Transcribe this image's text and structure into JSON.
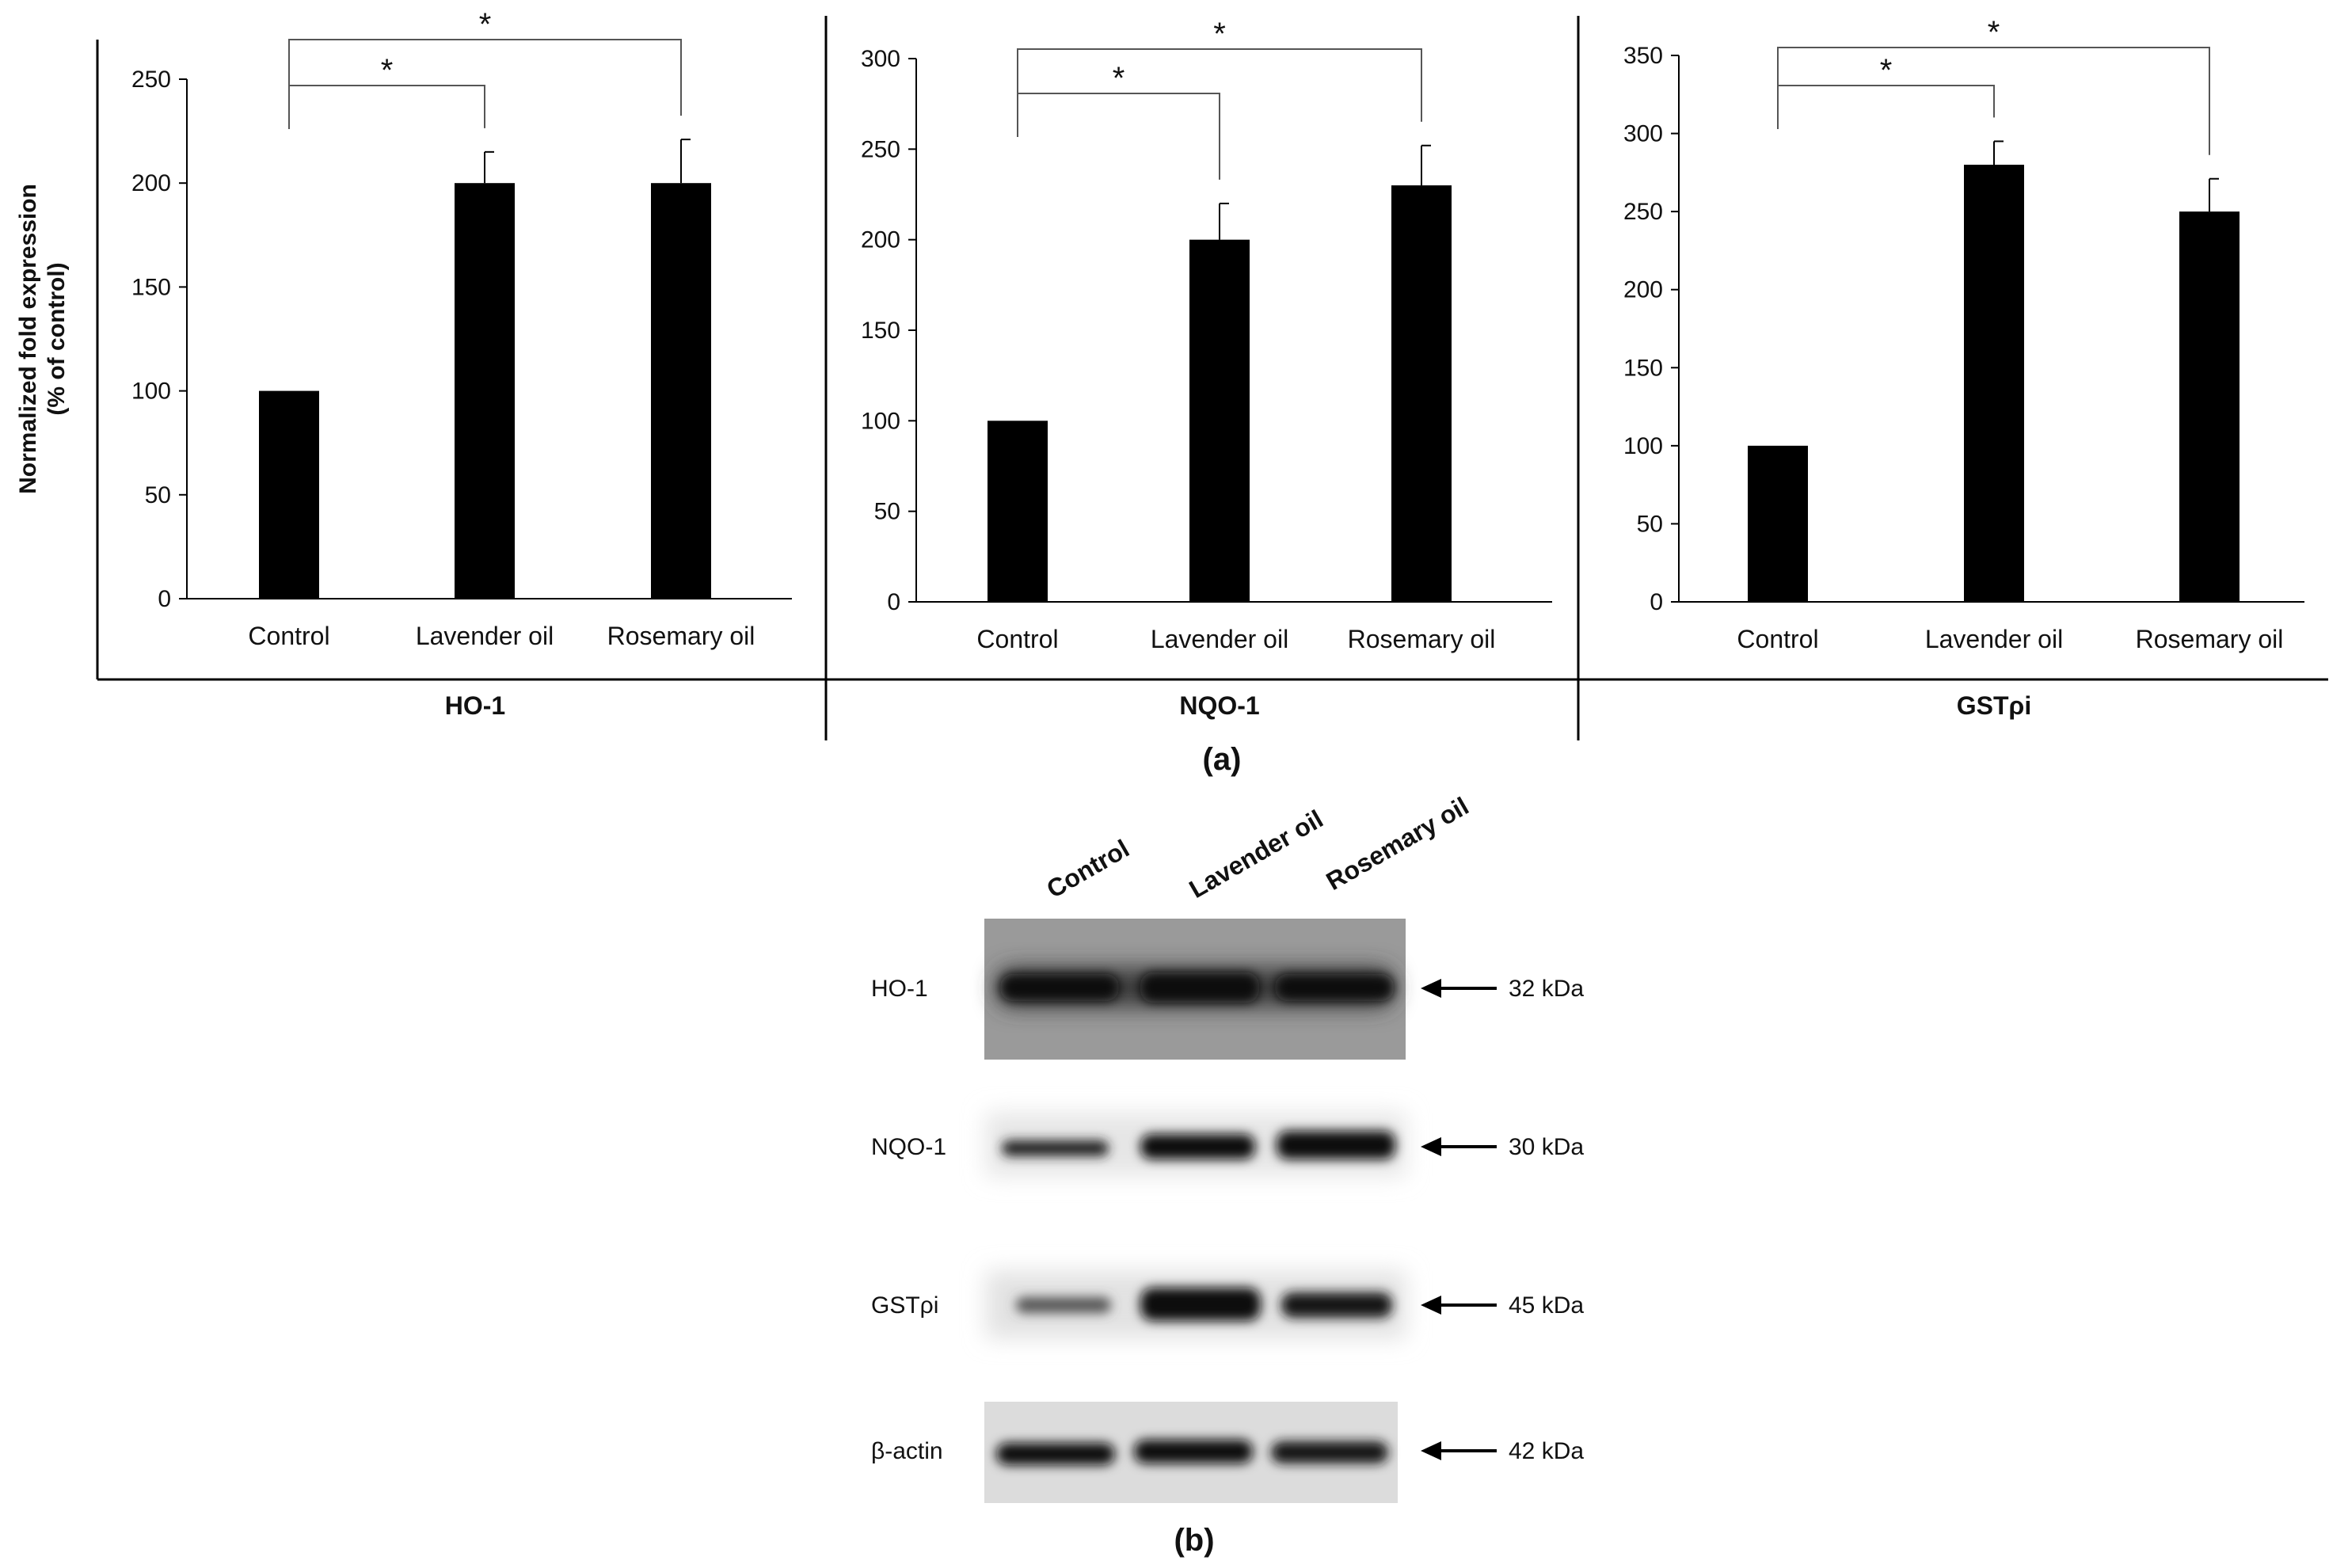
{
  "chart_data": [
    {
      "type": "bar",
      "panel_label": "HO-1",
      "categories": [
        "Control",
        "Lavender oil",
        "Rosemary oil"
      ],
      "values": [
        100,
        200,
        200
      ],
      "errors": [
        0,
        15,
        21
      ],
      "ylabel": "Normalized fold expression",
      "ylabel2": "(% of control)",
      "ylim": [
        0,
        250
      ],
      "yticks": [
        0,
        50,
        100,
        150,
        200,
        250
      ],
      "grid": false,
      "significance": [
        {
          "from": "Control",
          "to": "Lavender oil",
          "label": "*"
        },
        {
          "from": "Control",
          "to": "Rosemary oil",
          "label": "*"
        }
      ]
    },
    {
      "type": "bar",
      "panel_label": "NQO-1",
      "categories": [
        "Control",
        "Lavender oil",
        "Rosemary oil"
      ],
      "values": [
        100,
        200,
        230
      ],
      "errors": [
        0,
        20,
        22
      ],
      "ylim": [
        0,
        300
      ],
      "yticks": [
        0,
        50,
        100,
        150,
        200,
        250,
        300
      ],
      "grid": false,
      "significance": [
        {
          "from": "Control",
          "to": "Lavender oil",
          "label": "*"
        },
        {
          "from": "Control",
          "to": "Rosemary oil",
          "label": "*"
        }
      ]
    },
    {
      "type": "bar",
      "panel_label": "GSTρi",
      "categories": [
        "Control",
        "Lavender oil",
        "Rosemary oil"
      ],
      "values": [
        100,
        280,
        250
      ],
      "errors": [
        0,
        15,
        21
      ],
      "ylim": [
        0,
        350
      ],
      "yticks": [
        0,
        50,
        100,
        150,
        200,
        250,
        300,
        350
      ],
      "grid": false,
      "significance": [
        {
          "from": "Control",
          "to": "Lavender oil",
          "label": "*"
        },
        {
          "from": "Control",
          "to": "Rosemary oil",
          "label": "*"
        }
      ]
    }
  ],
  "caption_a": "(a)",
  "caption_b": "(b)",
  "blot": {
    "lanes": [
      "Control",
      "Lavender oil",
      "Rosemary oil"
    ],
    "rows": [
      {
        "protein": "HO-1",
        "size": "32 kDa"
      },
      {
        "protein": "NQO-1",
        "size": "30 kDa"
      },
      {
        "protein": "GSTρi",
        "size": "45 kDa"
      },
      {
        "protein": "β-actin",
        "size": "42 kDa"
      }
    ]
  },
  "colors": {
    "bar": "#000000",
    "axis": "#000000",
    "blot_bg": "#9a9a9a"
  }
}
